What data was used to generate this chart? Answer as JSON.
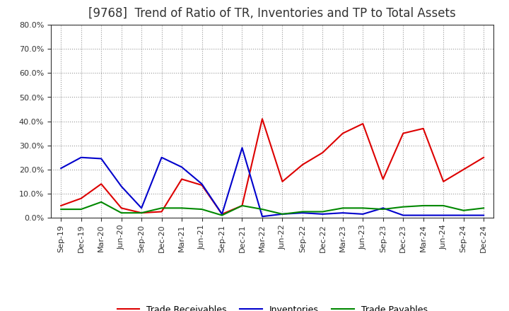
{
  "title": "[9768]  Trend of Ratio of TR, Inventories and TP to Total Assets",
  "x_labels": [
    "Sep-19",
    "Dec-19",
    "Mar-20",
    "Jun-20",
    "Sep-20",
    "Dec-20",
    "Mar-21",
    "Jun-21",
    "Sep-21",
    "Dec-21",
    "Mar-22",
    "Jun-22",
    "Sep-22",
    "Dec-22",
    "Mar-23",
    "Jun-23",
    "Sep-23",
    "Dec-23",
    "Mar-24",
    "Jun-24",
    "Sep-24",
    "Dec-24"
  ],
  "trade_receivables": [
    5.0,
    8.0,
    14.0,
    4.0,
    2.0,
    2.5,
    16.0,
    13.5,
    1.5,
    5.0,
    41.0,
    15.0,
    22.0,
    27.0,
    35.0,
    39.0,
    16.0,
    35.0,
    37.0,
    15.0,
    20.0,
    25.0
  ],
  "inventories": [
    20.5,
    25.0,
    24.5,
    13.0,
    4.0,
    25.0,
    21.0,
    14.0,
    1.5,
    29.0,
    0.5,
    1.5,
    2.0,
    1.5,
    2.0,
    1.5,
    4.0,
    1.0,
    1.0,
    1.0,
    1.0,
    1.0
  ],
  "trade_payables": [
    3.5,
    3.5,
    6.5,
    2.0,
    2.0,
    4.0,
    4.0,
    3.5,
    1.0,
    5.0,
    3.5,
    1.5,
    2.5,
    2.5,
    4.0,
    4.0,
    3.5,
    4.5,
    5.0,
    5.0,
    3.0,
    4.0
  ],
  "ylim": [
    0,
    80
  ],
  "yticks": [
    0,
    10,
    20,
    30,
    40,
    50,
    60,
    70,
    80
  ],
  "colors": {
    "trade_receivables": "#dd0000",
    "inventories": "#0000cc",
    "trade_payables": "#008800"
  },
  "legend_labels": [
    "Trade Receivables",
    "Inventories",
    "Trade Payables"
  ],
  "background_color": "#ffffff",
  "plot_bg_color": "#ffffff",
  "grid_color": "#999999",
  "title_fontsize": 12,
  "tick_fontsize": 8,
  "legend_fontsize": 9,
  "title_color": "#333333"
}
